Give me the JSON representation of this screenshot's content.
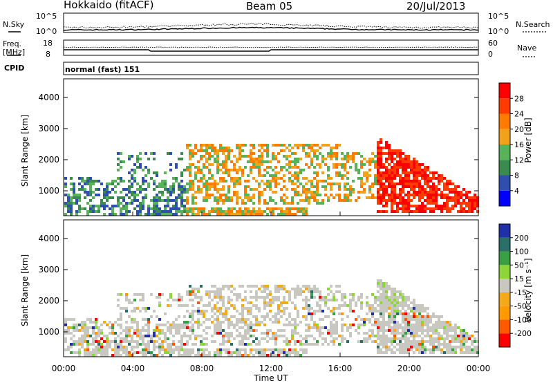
{
  "header": {
    "station": "Hokkaido (fitACF)",
    "beam": "Beam 05",
    "date": "20/Jul/2013"
  },
  "noise_panel": {
    "left_label": "N.Sky",
    "right_label": "N.Search",
    "ticks": [
      "10^5",
      "10^0"
    ],
    "right_ticks": [
      "10^5",
      "10^0"
    ]
  },
  "freq_panel": {
    "left_label_1": "Freq.",
    "left_label_2": "[MHz]",
    "left_ticks": [
      "18",
      "8"
    ],
    "right_label": "Nave",
    "right_ticks": [
      "60",
      "0"
    ]
  },
  "cpid": {
    "label": "CPID",
    "value": "normal (fast) 151"
  },
  "colors": {
    "power": [
      "#0000ff",
      "#2f4fb0",
      "#3a8c4e",
      "#58b25a",
      "#f2a21a",
      "#ff7a00",
      "#ff3b00",
      "#ff0000"
    ],
    "velocity": [
      "#ff0000",
      "#ff5a00",
      "#ff9a00",
      "#f2aa1a",
      "#c8c8c0",
      "#8cd63a",
      "#3aa046",
      "#2a6f6a",
      "#2030a8"
    ],
    "ground_scatter": "#c8c8c0"
  },
  "chart_data": [
    {
      "type": "heatmap",
      "name": "power",
      "ylabel": "Slant Range [km]",
      "yticks": [
        1000,
        2000,
        3000,
        4000
      ],
      "ylim": [
        200,
        4600
      ],
      "xlim_hours": [
        0,
        24
      ],
      "colorbar": {
        "label": "Power [dB]",
        "ticks": [
          "4",
          "8",
          "12",
          "16",
          "20",
          "24",
          "28"
        ]
      }
    },
    {
      "type": "heatmap",
      "name": "velocity",
      "ylabel": "Slant Range [km]",
      "yticks": [
        1000,
        2000,
        3000,
        4000
      ],
      "ylim": [
        200,
        4600
      ],
      "xlim_hours": [
        0,
        24
      ],
      "colorbar": {
        "label": "Velocity [m s⁻¹]",
        "ticks": [
          "-200",
          "-100",
          "-50",
          "-15",
          "15",
          "50",
          "100",
          "200"
        ]
      }
    }
  ],
  "x_axis": {
    "label": "Time UT",
    "ticks": [
      "00:00",
      "04:00",
      "08:00",
      "12:00",
      "16:00",
      "20:00",
      "00:00"
    ]
  }
}
